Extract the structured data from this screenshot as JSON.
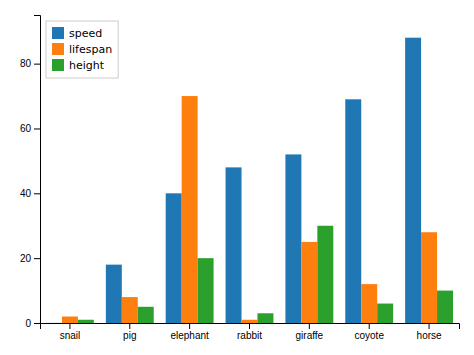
{
  "chart_data": {
    "type": "bar",
    "categories": [
      "snail",
      "pig",
      "elephant",
      "rabbit",
      "giraffe",
      "coyote",
      "horse"
    ],
    "series": [
      {
        "name": "speed",
        "color": "#1f77b4",
        "values": [
          0.03,
          18,
          40,
          48,
          52,
          69,
          88
        ]
      },
      {
        "name": "lifespan",
        "color": "#ff7f0e",
        "values": [
          2,
          8,
          70,
          1,
          25,
          12,
          28
        ]
      },
      {
        "name": "height",
        "color": "#2ca02c",
        "values": [
          1,
          5,
          20,
          3,
          30,
          6,
          10
        ]
      }
    ],
    "ylim": [
      0,
      95
    ],
    "yticks": [
      0,
      20,
      40,
      60,
      80
    ],
    "grid": false,
    "legend": "upper left"
  }
}
